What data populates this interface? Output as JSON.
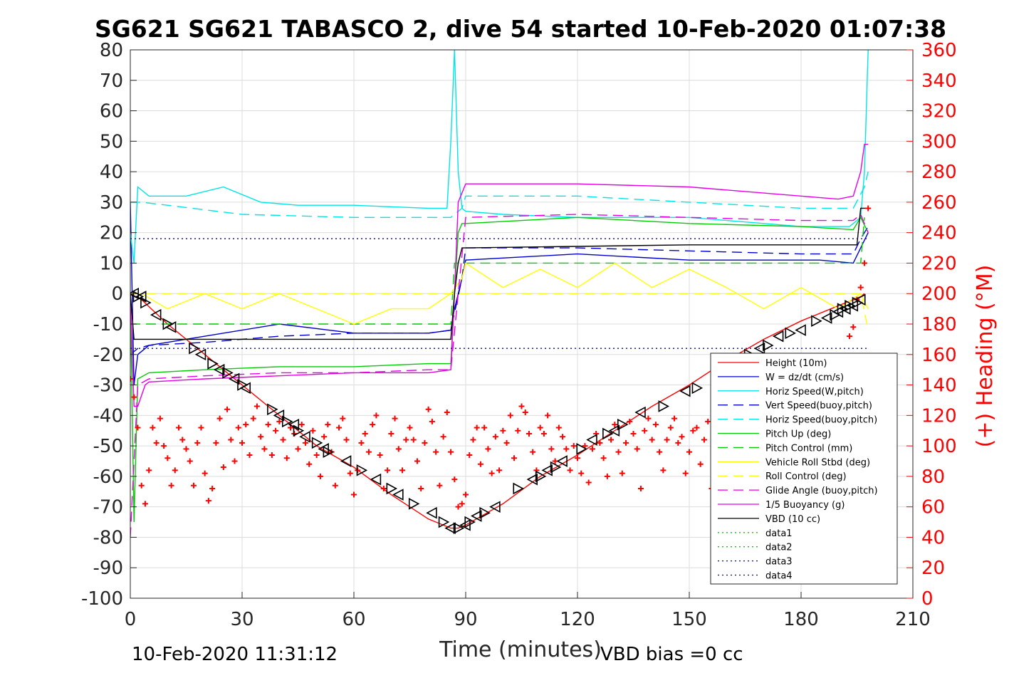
{
  "chart_data": {
    "type": "line",
    "title": "SG621 SG621 TABASCO 2, dive 54 started 10-Feb-2020 01:07:38",
    "xlabel": "Time (minutes)",
    "ylabel_right": "(+) Heading (°M)",
    "xlim": [
      0,
      210
    ],
    "ylim": [
      -100,
      80
    ],
    "ylim_right": [
      0,
      360
    ],
    "x_ticks": [
      "0",
      "30",
      "60",
      "90",
      "120",
      "150",
      "180",
      "210"
    ],
    "y_ticks": [
      "80",
      "70",
      "60",
      "50",
      "40",
      "30",
      "20",
      "10",
      "0",
      "-10",
      "-20",
      "-30",
      "-40",
      "-50",
      "-60",
      "-70",
      "-80",
      "-90",
      "-100"
    ],
    "y_ticks_right": [
      "360",
      "340",
      "320",
      "300",
      "280",
      "260",
      "240",
      "220",
      "200",
      "180",
      "160",
      "140",
      "120",
      "100",
      "80",
      "60",
      "40",
      "20",
      "0"
    ],
    "grid": true,
    "legend_position": "bottom-right",
    "footer_left": "10-Feb-2020 11:31:12",
    "footer_right": "VBD bias =0 cc",
    "series": [
      {
        "name": "Height (10m)",
        "color": "#ff0000",
        "style": "solid",
        "x": [
          0,
          3,
          10,
          20,
          30,
          40,
          50,
          60,
          70,
          80,
          86,
          88,
          90,
          100,
          110,
          120,
          130,
          140,
          150,
          160,
          170,
          180,
          190,
          196,
          197
        ],
        "y": [
          0,
          -2,
          -10,
          -20,
          -30,
          -40,
          -50,
          -57,
          -66,
          -74,
          -77,
          -77,
          -76,
          -69,
          -60,
          -53,
          -45,
          -37,
          -30,
          -22,
          -15,
          -9,
          -4,
          -1,
          0
        ]
      },
      {
        "name": "W = dz/dt (cm/s)",
        "color": "#0000cc",
        "style": "solid",
        "x": [
          0,
          1,
          2,
          5,
          20,
          40,
          60,
          80,
          86,
          87,
          89,
          90,
          120,
          150,
          175,
          185,
          194,
          196,
          198
        ],
        "y": [
          30,
          -30,
          -20,
          -17,
          -14,
          -10,
          -13,
          -13,
          -12,
          -5,
          5,
          11,
          13,
          11,
          11,
          11,
          10,
          15,
          20
        ]
      },
      {
        "name": "Horiz Speed(W,pitch)",
        "color": "#00e5e5",
        "style": "solid",
        "x": [
          0,
          1,
          2,
          5,
          15,
          25,
          35,
          45,
          60,
          80,
          85,
          86,
          87,
          88,
          89,
          90,
          100,
          120,
          150,
          180,
          193,
          196,
          197,
          198
        ],
        "y": [
          20,
          10,
          35,
          32,
          32,
          35,
          30,
          29,
          29,
          28,
          28,
          50,
          80,
          40,
          28,
          27,
          26,
          25,
          25,
          22,
          22,
          25,
          40,
          80
        ]
      },
      {
        "name": "Vert Speed(buoy,pitch)",
        "color": "#0000cc",
        "style": "dashed",
        "x": [
          0,
          2,
          5,
          20,
          40,
          60,
          80,
          86,
          89,
          90,
          120,
          150,
          180,
          194,
          196,
          198
        ],
        "y": [
          -20,
          -18,
          -17,
          -16,
          -14,
          -13,
          -13,
          -12,
          5,
          15,
          15,
          14,
          13,
          13,
          18,
          22
        ]
      },
      {
        "name": "Horiz Speed(buoy,pitch)",
        "color": "#00e5e5",
        "style": "dashed",
        "x": [
          0,
          3,
          10,
          30,
          60,
          80,
          86,
          89,
          90,
          120,
          150,
          180,
          194,
          197,
          198
        ],
        "y": [
          30,
          30,
          29,
          26,
          25,
          25,
          25,
          28,
          32,
          32,
          30,
          28,
          28,
          35,
          40
        ]
      },
      {
        "name": "Pitch Up (deg)",
        "color": "#00cc00",
        "style": "solid",
        "x": [
          0,
          1,
          2,
          5,
          20,
          40,
          60,
          80,
          86,
          87,
          88,
          89,
          90,
          120,
          150,
          180,
          194,
          196,
          198
        ],
        "y": [
          0,
          -75,
          -28,
          -26,
          -25,
          -24,
          -24,
          -23,
          -23,
          0,
          20,
          23,
          23,
          25,
          23,
          22,
          21,
          25,
          20
        ]
      },
      {
        "name": "Pitch Control (mm)",
        "color": "#00cc00",
        "style": "dashed",
        "x": [
          0,
          2,
          86,
          87,
          90,
          196,
          197
        ],
        "y": [
          -10,
          -10,
          -10,
          10,
          10,
          10,
          25
        ]
      },
      {
        "name": "Vehicle Roll Stbd (deg)",
        "color": "#ffff00",
        "style": "solid",
        "x": [
          0,
          3,
          10,
          20,
          30,
          40,
          50,
          60,
          70,
          80,
          86,
          89,
          90,
          100,
          110,
          120,
          130,
          140,
          150,
          160,
          170,
          180,
          190,
          196,
          198
        ],
        "y": [
          0,
          0,
          -5,
          0,
          -5,
          0,
          -5,
          -10,
          -5,
          -5,
          0,
          5,
          10,
          2,
          8,
          2,
          10,
          2,
          8,
          2,
          -5,
          2,
          -5,
          0,
          -5
        ]
      },
      {
        "name": "Roll Control (deg)",
        "color": "#ffff00",
        "style": "dashed",
        "x": [
          0,
          2,
          86,
          87,
          196,
          198
        ],
        "y": [
          0,
          0,
          0,
          0,
          0,
          -12
        ]
      },
      {
        "name": "Glide Angle (buoy,pitch)",
        "color": "#e600e6",
        "style": "dashed",
        "x": [
          0,
          2,
          5,
          20,
          40,
          60,
          80,
          86,
          88,
          90,
          120,
          150,
          180,
          194,
          196,
          198
        ],
        "y": [
          -80,
          -30,
          -28,
          -27,
          -26,
          -26,
          -25,
          -25,
          0,
          25,
          26,
          25,
          24,
          24,
          26,
          20
        ]
      },
      {
        "name": "1/5 Buoyancy (g)",
        "color": "#e600e6",
        "style": "solid",
        "x": [
          0,
          1,
          2,
          4,
          5,
          20,
          40,
          60,
          80,
          86,
          87,
          88,
          90,
          120,
          150,
          180,
          190,
          194,
          196,
          197,
          198
        ],
        "y": [
          0,
          -37,
          -37,
          -30,
          -29,
          -28,
          -27,
          -26,
          -26,
          -25,
          0,
          30,
          36,
          36,
          35,
          32,
          31,
          32,
          40,
          49,
          49
        ]
      },
      {
        "name": "VBD (10 cc)",
        "color": "#000000",
        "style": "solid",
        "x": [
          0,
          1,
          2,
          3,
          86,
          87,
          88,
          89,
          90,
          150,
          194,
          195,
          196,
          197,
          198
        ],
        "y": [
          0,
          -15,
          -15,
          -15,
          -15,
          0,
          10,
          15,
          15,
          16,
          16,
          16,
          28,
          28,
          28
        ]
      },
      {
        "name": "data1",
        "color": "#00cc00",
        "style": "dotted",
        "x": [],
        "y": []
      },
      {
        "name": "data2",
        "color": "#00cc00",
        "style": "dotted",
        "x": [],
        "y": []
      },
      {
        "name": "data3",
        "color": "#0000cc",
        "style": "dotted",
        "x": [
          0,
          198
        ],
        "y": [
          18,
          18
        ]
      },
      {
        "name": "data4",
        "color": "#0000cc",
        "style": "dotted",
        "x": [
          0,
          198
        ],
        "y": [
          -18,
          -18
        ]
      }
    ],
    "heading_markers": {
      "color": "#ff0000",
      "marker": "+",
      "axis": "right",
      "x": [
        0,
        1,
        2,
        3,
        4,
        5,
        6,
        7,
        8,
        9,
        10,
        11,
        12,
        13,
        14,
        15,
        16,
        17,
        18,
        19,
        20,
        21,
        22,
        23,
        24,
        25,
        26,
        27,
        28,
        29,
        30,
        31,
        32,
        33,
        34,
        35,
        36,
        37,
        38,
        39,
        40,
        41,
        42,
        43,
        44,
        45,
        46,
        47,
        48,
        49,
        50,
        51,
        52,
        53,
        54,
        55,
        56,
        57,
        58,
        59,
        60,
        61,
        62,
        63,
        64,
        65,
        66,
        67,
        68,
        69,
        70,
        71,
        72,
        73,
        74,
        75,
        76,
        77,
        78,
        79,
        80,
        81,
        82,
        83,
        84,
        85,
        86,
        87,
        88,
        89,
        90,
        91,
        92,
        93,
        94,
        95,
        96,
        97,
        98,
        99,
        100,
        101,
        102,
        103,
        104,
        105,
        106,
        107,
        108,
        109,
        110,
        111,
        112,
        113,
        114,
        115,
        116,
        117,
        118,
        119,
        120,
        121,
        122,
        123,
        124,
        125,
        126,
        127,
        128,
        129,
        130,
        131,
        132,
        133,
        134,
        135,
        136,
        137,
        138,
        139,
        140,
        141,
        142,
        143,
        144,
        145,
        146,
        147,
        148,
        149,
        150,
        151,
        152,
        153,
        154,
        155,
        156,
        157,
        158,
        159,
        160,
        161,
        162,
        163,
        164,
        165,
        166,
        167,
        168,
        169,
        170,
        171,
        172,
        173,
        174,
        175,
        176,
        177,
        178,
        179,
        180,
        181,
        182,
        183,
        184,
        185,
        186,
        187,
        188,
        189,
        190,
        191,
        192,
        193,
        194,
        195,
        196,
        197,
        198
      ],
      "y": [
        144,
        132,
        112,
        74,
        62,
        84,
        112,
        102,
        118,
        100,
        92,
        74,
        84,
        112,
        104,
        98,
        90,
        74,
        102,
        112,
        82,
        64,
        72,
        102,
        118,
        86,
        124,
        104,
        90,
        112,
        102,
        114,
        94,
        118,
        126,
        106,
        98,
        114,
        94,
        110,
        116,
        104,
        92,
        112,
        108,
        98,
        114,
        102,
        88,
        110,
        94,
        80,
        106,
        114,
        96,
        74,
        112,
        118,
        104,
        82,
        68,
        84,
        102,
        108,
        96,
        114,
        120,
        94,
        72,
        84,
        108,
        118,
        98,
        84,
        104,
        112,
        104,
        90,
        72,
        102,
        124,
        116,
        96,
        74,
        106,
        122,
        96,
        78,
        60,
        62,
        68,
        94,
        104,
        112,
        88,
        112,
        98,
        82,
        106,
        84,
        110,
        102,
        120,
        92,
        110,
        126,
        122,
        108,
        96,
        84,
        112,
        108,
        120,
        98,
        90,
        112,
        106,
        98,
        84,
        100,
        92,
        82,
        100,
        76,
        98,
        108,
        102,
        92,
        80,
        104,
        114,
        96,
        82,
        102,
        116,
        108,
        98,
        72,
        110,
        118,
        104,
        114,
        96,
        84,
        104,
        112,
        118,
        102,
        106,
        82,
        96,
        110,
        112,
        88,
        104,
        116,
        72,
        98,
        84,
        94,
        106,
        112,
        96,
        102,
        110,
        98,
        94,
        104,
        112,
        96,
        106,
        88,
        102,
        108,
        96,
        112,
        94,
        104,
        88,
        100,
        108,
        96,
        104,
        112,
        94,
        102,
        98,
        110,
        106,
        98,
        104,
        112,
        96,
        172,
        178,
        196,
        204,
        220,
        256
      ]
    },
    "triangle_markers": {
      "color": "#000000",
      "marker": "triangle",
      "axis": "left",
      "x": [
        1,
        2,
        3,
        4,
        7,
        10,
        11,
        17,
        19,
        22,
        24,
        26,
        28,
        30,
        31,
        38,
        40,
        42,
        44,
        45,
        47,
        50,
        52,
        53,
        58,
        62,
        66,
        70,
        72,
        76,
        81,
        84,
        86,
        88,
        90,
        91,
        93,
        95,
        98,
        104,
        108,
        110,
        112,
        114,
        116,
        121,
        124,
        128,
        130,
        132,
        137,
        143,
        149,
        152,
        160,
        166,
        169,
        171,
        174,
        177,
        180,
        184,
        187,
        189,
        190,
        191,
        192,
        193,
        194,
        195,
        196
      ],
      "y": [
        0,
        -1,
        -1,
        -3,
        -7,
        -10,
        -11,
        -18,
        -20,
        -23,
        -25,
        -26,
        -28,
        -30,
        -31,
        -38,
        -40,
        -42,
        -43,
        -45,
        -47,
        -49,
        -51,
        -52,
        -55,
        -58,
        -61,
        -64,
        -66,
        -69,
        -72,
        -75,
        -77,
        -77,
        -76,
        -75,
        -73,
        -72,
        -70,
        -64,
        -61,
        -60,
        -58,
        -57,
        -55,
        -51,
        -48,
        -46,
        -45,
        -43,
        -39,
        -37,
        -32,
        -31,
        -24,
        -20,
        -18,
        -17,
        -14,
        -13,
        -12,
        -9,
        -8,
        -7,
        -6,
        -5,
        -5,
        -4,
        -4,
        -3,
        -2
      ]
    }
  }
}
